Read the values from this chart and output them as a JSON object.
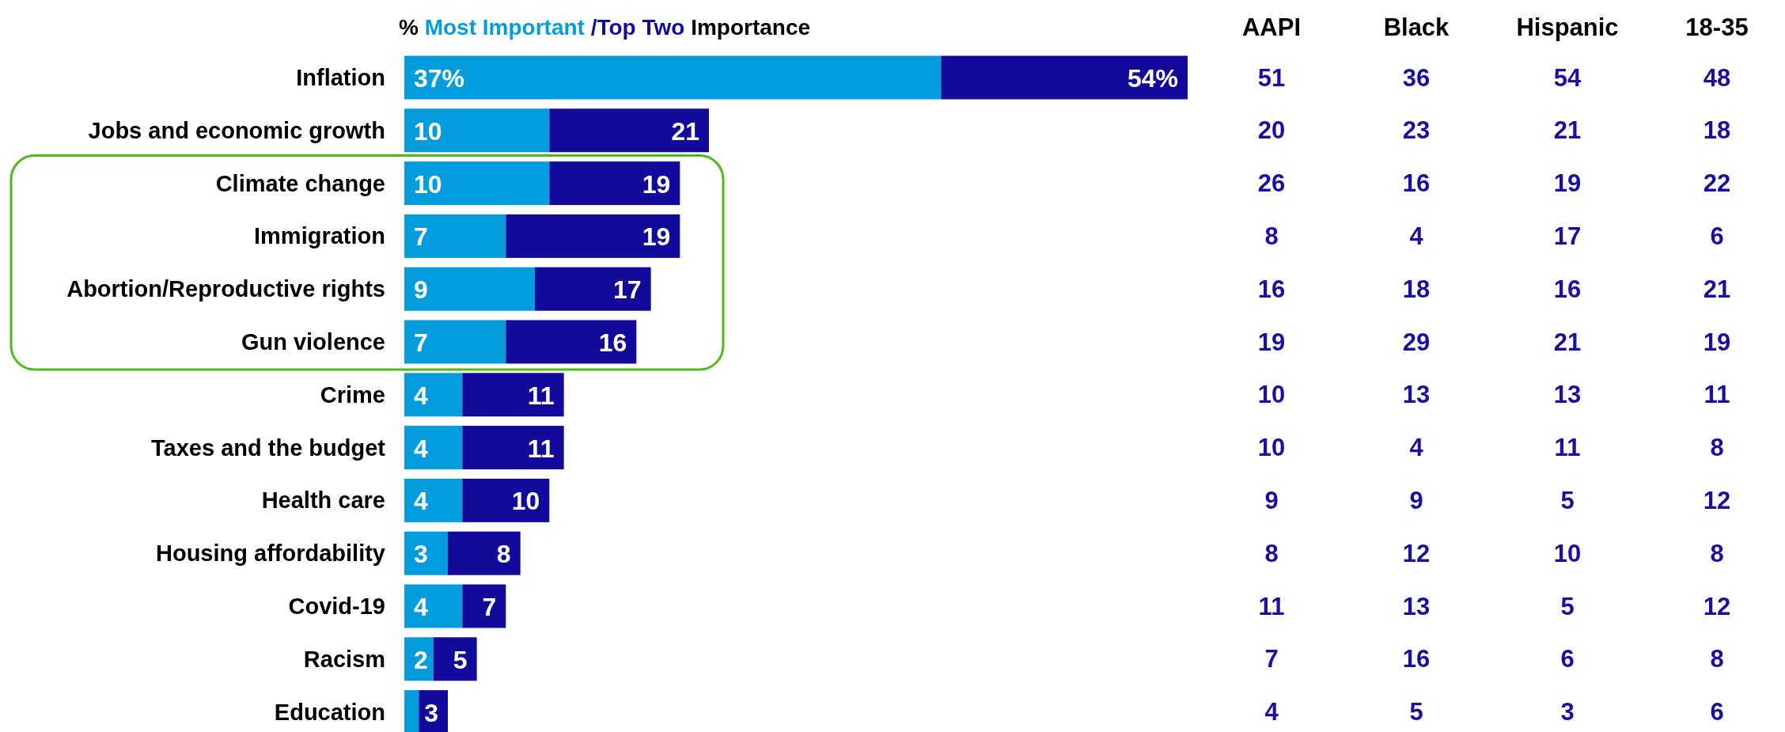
{
  "chart_data": [
    {
      "type": "bar",
      "orientation": "horizontal",
      "stacked": true,
      "legend": "top",
      "legend_title": "%",
      "annotations": [
        "Importance"
      ],
      "categories": [
        "Inflation",
        "Jobs and economic growth",
        "Climate change",
        "Immigration",
        "Abortion/Reproductive rights",
        "Gun violence",
        "Crime",
        "Taxes and the budget",
        "Health care",
        "Housing affordability",
        "Covid-19",
        "Racism",
        "Education"
      ],
      "series": [
        {
          "name": "Most Important",
          "color": "#039dde",
          "values": [
            37,
            10,
            10,
            7,
            9,
            7,
            4,
            4,
            4,
            3,
            4,
            2,
            1
          ],
          "value_labels": [
            "37%",
            "10",
            "10",
            "7",
            "9",
            "7",
            "4",
            "4",
            "4",
            "3",
            "4",
            "2",
            null
          ]
        },
        {
          "name": "/Top Two",
          "color": "#120a9b",
          "values": [
            17,
            11,
            9,
            12,
            8,
            9,
            7,
            7,
            6,
            5,
            3,
            3,
            2
          ]
        }
      ],
      "totals": [
        "54%",
        "21",
        "19",
        "19",
        "17",
        "16",
        "11",
        "11",
        "10",
        "8",
        "7",
        "5",
        "3"
      ]
    },
    {
      "type": "heatmap",
      "categories": [
        "AAPI",
        "Black",
        "Hispanic",
        "18-35"
      ],
      "y_categories": [
        null,
        null,
        null,
        null,
        null,
        null,
        null,
        null,
        null,
        null,
        null,
        null,
        null
      ],
      "color": "#1a0f9e",
      "data_labels": true,
      "cells": [
        [
          51,
          36,
          54,
          48
        ],
        [
          20,
          23,
          21,
          18
        ],
        [
          26,
          16,
          19,
          22
        ],
        [
          8,
          4,
          17,
          6
        ],
        [
          16,
          18,
          16,
          21
        ],
        [
          19,
          29,
          21,
          19
        ],
        [
          10,
          13,
          13,
          11
        ],
        [
          10,
          4,
          11,
          8
        ],
        [
          9,
          9,
          5,
          12
        ],
        [
          8,
          12,
          10,
          8
        ],
        [
          11,
          13,
          5,
          12
        ],
        [
          7,
          16,
          6,
          8
        ],
        [
          4,
          5,
          3,
          6
        ]
      ]
    }
  ]
}
